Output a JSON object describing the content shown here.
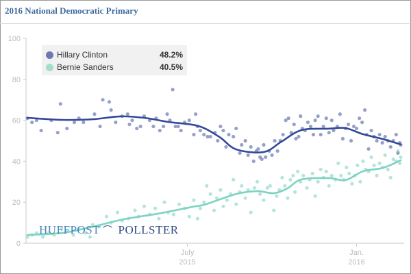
{
  "header": {
    "title": "2016 National Democratic Primary"
  },
  "branding": {
    "left": "HUFFPOST",
    "right": "POLLSTER",
    "mark_icon": "swoosh-icon"
  },
  "colors": {
    "clinton": "#34489a",
    "clinton_points": "#8491c0",
    "sanders": "#7dd3c1",
    "sanders_points": "#a8e1d4",
    "title": "#3c6a9c"
  },
  "legend": {
    "items": [
      {
        "name": "Hillary Clinton",
        "value": "48.2%",
        "color": "#6b78b4"
      },
      {
        "name": "Bernie Sanders",
        "value": "40.5%",
        "color": "#a3ddd0"
      }
    ]
  },
  "chart_data": {
    "type": "scatter",
    "title": "2016 National Democratic Primary",
    "xlabel": "",
    "ylabel": "",
    "x_unit": "days since 2015-01-01",
    "xlim": [
      7,
      413
    ],
    "ylim": [
      0,
      100
    ],
    "yticks": [
      0,
      20,
      40,
      60,
      80,
      100
    ],
    "xticks": [
      {
        "day": 181,
        "label1": "July",
        "label2": "2015"
      },
      {
        "day": 365,
        "label1": "Jan.",
        "label2": "2016"
      }
    ],
    "grid": false,
    "legend_position": "top-left",
    "series": [
      {
        "name": "Hillary Clinton",
        "final": 48.2,
        "trend": [
          [
            7,
            61.2
          ],
          [
            45,
            60.2
          ],
          [
            78,
            60.5
          ],
          [
            108,
            61.9
          ],
          [
            134,
            61.2
          ],
          [
            160,
            59.2
          ],
          [
            193,
            57.2
          ],
          [
            216,
            51.8
          ],
          [
            234,
            45.8
          ],
          [
            264,
            44.5
          ],
          [
            283,
            49.5
          ],
          [
            305,
            55.2
          ],
          [
            335,
            55.9
          ],
          [
            353,
            56.2
          ],
          [
            372,
            53.2
          ],
          [
            394,
            50.8
          ],
          [
            413,
            48.2
          ]
        ],
        "points": [
          [
            7,
            61
          ],
          [
            12,
            59
          ],
          [
            17,
            60
          ],
          [
            22,
            55
          ],
          [
            33,
            60
          ],
          [
            40,
            54
          ],
          [
            43,
            68
          ],
          [
            50,
            56
          ],
          [
            58,
            59
          ],
          [
            63,
            61
          ],
          [
            68,
            59
          ],
          [
            80,
            63
          ],
          [
            86,
            57
          ],
          [
            89,
            70
          ],
          [
            96,
            69
          ],
          [
            98,
            65
          ],
          [
            103,
            59
          ],
          [
            110,
            62
          ],
          [
            116,
            63
          ],
          [
            118,
            58
          ],
          [
            121,
            60
          ],
          [
            126,
            56
          ],
          [
            130,
            57
          ],
          [
            134,
            62
          ],
          [
            140,
            60
          ],
          [
            144,
            57
          ],
          [
            147,
            61
          ],
          [
            151,
            55
          ],
          [
            155,
            57
          ],
          [
            159,
            63
          ],
          [
            162,
            60
          ],
          [
            165,
            75
          ],
          [
            168,
            57
          ],
          [
            171,
            57
          ],
          [
            174,
            55
          ],
          [
            178,
            59
          ],
          [
            183,
            60
          ],
          [
            188,
            53
          ],
          [
            190,
            63
          ],
          [
            192,
            57
          ],
          [
            195,
            55
          ],
          [
            199,
            53
          ],
          [
            203,
            52
          ],
          [
            206,
            52
          ],
          [
            211,
            54
          ],
          [
            214,
            50
          ],
          [
            217,
            57
          ],
          [
            220,
            55
          ],
          [
            223,
            47
          ],
          [
            226,
            53
          ],
          [
            231,
            52
          ],
          [
            234,
            56
          ],
          [
            238,
            44
          ],
          [
            240,
            48
          ],
          [
            244,
            50
          ],
          [
            247,
            43
          ],
          [
            250,
            47
          ],
          [
            253,
            40
          ],
          [
            256,
            45
          ],
          [
            258,
            46
          ],
          [
            260,
            42
          ],
          [
            262,
            41
          ],
          [
            264,
            48
          ],
          [
            266,
            42
          ],
          [
            270,
            45
          ],
          [
            273,
            43
          ],
          [
            276,
            50
          ],
          [
            279,
            45
          ],
          [
            282,
            50
          ],
          [
            285,
            53
          ],
          [
            288,
            60
          ],
          [
            291,
            61
          ],
          [
            294,
            54
          ],
          [
            297,
            58
          ],
          [
            299,
            51
          ],
          [
            302,
            52
          ],
          [
            304,
            62
          ],
          [
            306,
            56
          ],
          [
            309,
            55
          ],
          [
            312,
            59
          ],
          [
            315,
            57
          ],
          [
            318,
            53
          ],
          [
            320,
            60
          ],
          [
            323,
            62
          ],
          [
            326,
            53
          ],
          [
            329,
            57
          ],
          [
            332,
            61
          ],
          [
            335,
            54
          ],
          [
            338,
            60
          ],
          [
            340,
            55
          ],
          [
            344,
            57
          ],
          [
            347,
            63
          ],
          [
            350,
            51
          ],
          [
            353,
            56
          ],
          [
            356,
            58
          ],
          [
            359,
            50
          ],
          [
            362,
            57
          ],
          [
            365,
            56
          ],
          [
            368,
            61
          ],
          [
            371,
            59
          ],
          [
            374,
            65
          ],
          [
            376,
            53
          ],
          [
            378,
            46
          ],
          [
            381,
            55
          ],
          [
            384,
            52
          ],
          [
            387,
            50
          ],
          [
            390,
            53
          ],
          [
            393,
            49
          ],
          [
            396,
            52
          ],
          [
            399,
            50
          ],
          [
            402,
            47
          ],
          [
            405,
            50
          ],
          [
            408,
            53
          ],
          [
            410,
            44
          ],
          [
            412,
            49
          ],
          [
            413,
            48
          ]
        ]
      },
      {
        "name": "Bernie Sanders",
        "final": 40.5,
        "trend": [
          [
            7,
            4.0
          ],
          [
            45,
            5.0
          ],
          [
            75,
            7.7
          ],
          [
            112,
            11.7
          ],
          [
            149,
            14.4
          ],
          [
            186,
            17.7
          ],
          [
            201,
            19.0
          ],
          [
            234,
            24.0
          ],
          [
            257,
            25.4
          ],
          [
            275,
            24.4
          ],
          [
            290,
            26.8
          ],
          [
            305,
            31.1
          ],
          [
            335,
            31.8
          ],
          [
            353,
            30.8
          ],
          [
            372,
            35.1
          ],
          [
            394,
            36.8
          ],
          [
            413,
            40.5
          ]
        ],
        "points": [
          [
            7,
            3
          ],
          [
            12,
            4
          ],
          [
            17,
            5
          ],
          [
            24,
            3
          ],
          [
            30,
            5
          ],
          [
            36,
            4
          ],
          [
            44,
            7
          ],
          [
            50,
            6
          ],
          [
            57,
            4
          ],
          [
            63,
            7
          ],
          [
            70,
            5
          ],
          [
            75,
            3
          ],
          [
            78,
            9
          ],
          [
            85,
            8
          ],
          [
            93,
            13
          ],
          [
            98,
            10
          ],
          [
            105,
            15
          ],
          [
            110,
            11
          ],
          [
            117,
            12
          ],
          [
            124,
            16
          ],
          [
            128,
            13
          ],
          [
            134,
            18
          ],
          [
            140,
            14
          ],
          [
            146,
            17
          ],
          [
            150,
            12
          ],
          [
            156,
            20
          ],
          [
            160,
            15
          ],
          [
            166,
            14
          ],
          [
            172,
            19
          ],
          [
            178,
            17
          ],
          [
            183,
            13
          ],
          [
            188,
            21
          ],
          [
            192,
            12
          ],
          [
            195,
            17
          ],
          [
            199,
            20
          ],
          [
            202,
            28
          ],
          [
            206,
            24
          ],
          [
            210,
            16
          ],
          [
            213,
            22
          ],
          [
            217,
            26
          ],
          [
            220,
            18
          ],
          [
            224,
            21
          ],
          [
            228,
            24
          ],
          [
            231,
            31
          ],
          [
            234,
            19
          ],
          [
            238,
            25
          ],
          [
            240,
            28
          ],
          [
            244,
            22
          ],
          [
            247,
            26
          ],
          [
            250,
            15
          ],
          [
            254,
            27
          ],
          [
            257,
            30
          ],
          [
            260,
            24
          ],
          [
            264,
            21
          ],
          [
            268,
            27
          ],
          [
            271,
            28
          ],
          [
            275,
            16
          ],
          [
            278,
            23
          ],
          [
            281,
            26
          ],
          [
            284,
            32
          ],
          [
            287,
            28
          ],
          [
            290,
            22
          ],
          [
            293,
            31
          ],
          [
            296,
            33
          ],
          [
            298,
            25
          ],
          [
            301,
            35
          ],
          [
            304,
            30
          ],
          [
            307,
            33
          ],
          [
            311,
            27
          ],
          [
            314,
            31
          ],
          [
            317,
            34
          ],
          [
            320,
            23
          ],
          [
            323,
            30
          ],
          [
            326,
            36
          ],
          [
            329,
            32
          ],
          [
            332,
            35
          ],
          [
            335,
            28
          ],
          [
            338,
            33
          ],
          [
            342,
            31
          ],
          [
            345,
            39
          ],
          [
            348,
            33
          ],
          [
            351,
            31
          ],
          [
            354,
            37
          ],
          [
            357,
            34
          ],
          [
            360,
            29
          ],
          [
            363,
            33
          ],
          [
            366,
            38
          ],
          [
            369,
            30
          ],
          [
            372,
            40
          ],
          [
            375,
            36
          ],
          [
            378,
            35
          ],
          [
            381,
            42
          ],
          [
            384,
            38
          ],
          [
            387,
            33
          ],
          [
            390,
            39
          ],
          [
            393,
            37
          ],
          [
            396,
            43
          ],
          [
            399,
            36
          ],
          [
            402,
            32
          ],
          [
            405,
            41
          ],
          [
            408,
            40
          ],
          [
            410,
            45
          ],
          [
            412,
            39
          ],
          [
            413,
            42
          ]
        ]
      }
    ]
  }
}
